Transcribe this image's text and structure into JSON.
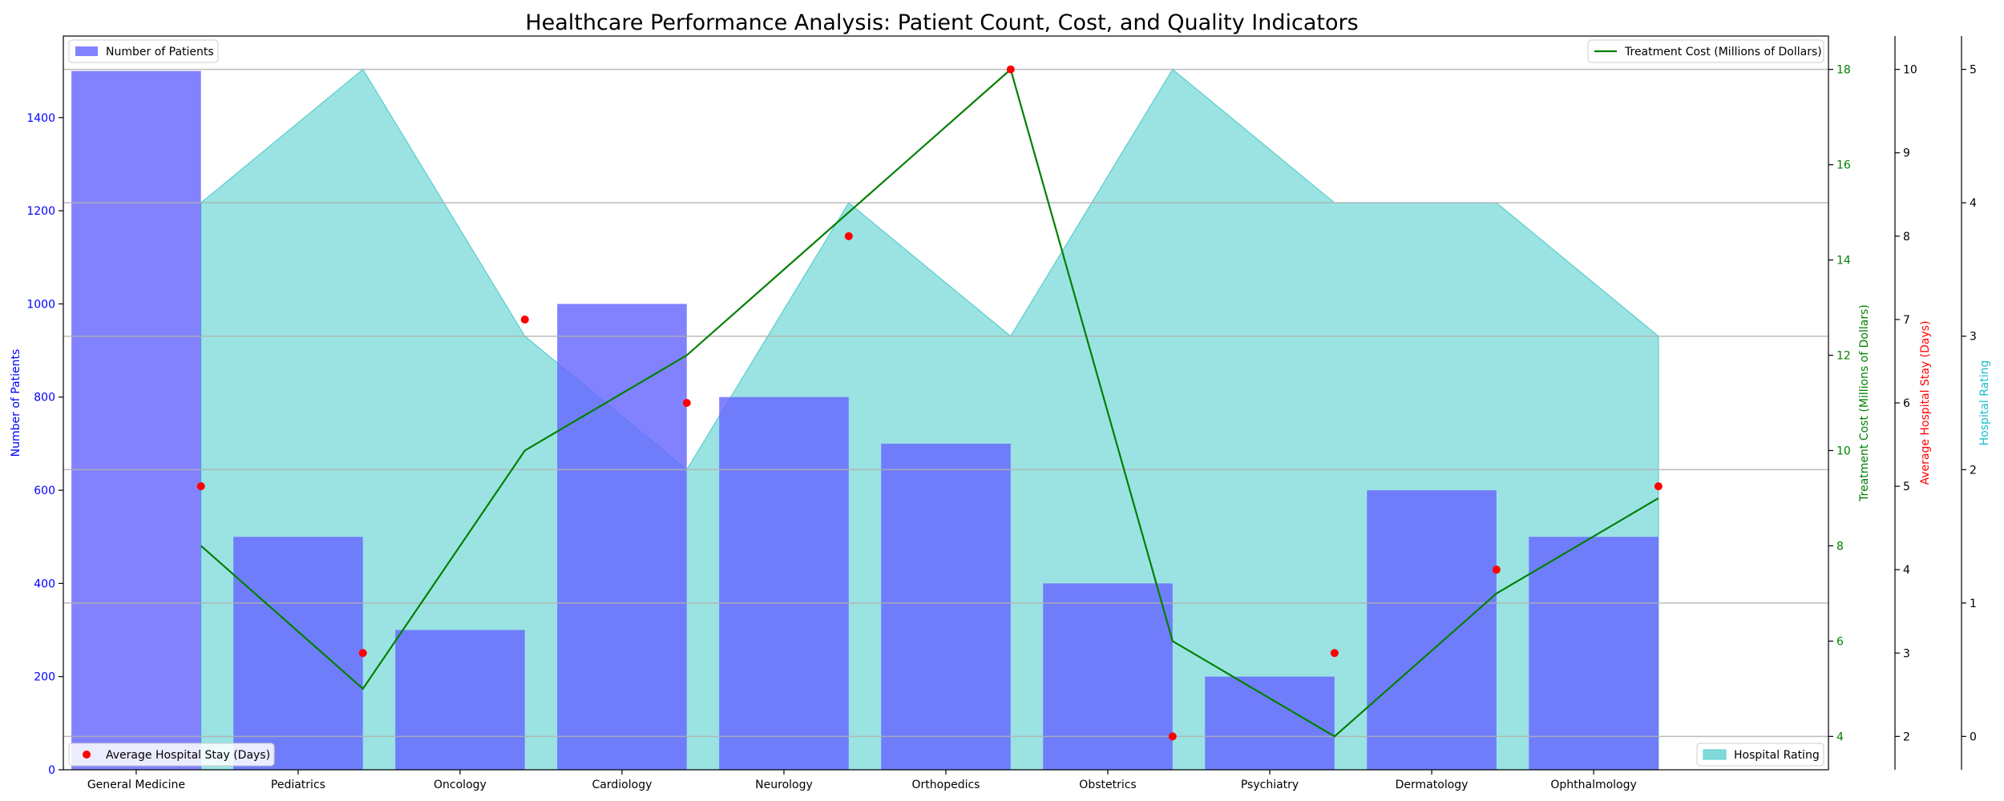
{
  "chart_data": {
    "type": "bar",
    "title": "Healthcare Performance Analysis: Patient Count, Cost, and Quality Indicators",
    "categories": [
      "General Medicine",
      "Pediatrics",
      "Oncology",
      "Cardiology",
      "Neurology",
      "Orthopedics",
      "Obstetrics",
      "Psychiatry",
      "Dermatology",
      "Ophthalmology"
    ],
    "series": [
      {
        "name": "Number of Patients",
        "type": "bar",
        "values": [
          1500,
          500,
          300,
          1000,
          800,
          700,
          400,
          200,
          600,
          500
        ],
        "color": "#6666ff"
      },
      {
        "name": "Treatment Cost (Millions of Dollars)",
        "type": "line",
        "values": [
          8,
          5,
          10,
          12,
          15,
          18,
          6,
          4,
          7,
          9
        ],
        "color": "#008000"
      },
      {
        "name": "Average Hospital Stay (Days)",
        "type": "scatter",
        "values": [
          5,
          3,
          7,
          6,
          8,
          10,
          2,
          3,
          4,
          5
        ],
        "color": "#ff0000"
      },
      {
        "name": "Hospital Rating",
        "type": "area",
        "values": [
          4,
          5,
          3,
          2,
          4,
          3,
          5,
          4,
          4,
          3
        ],
        "color": "#7fdbdb"
      }
    ],
    "axes": {
      "patients": {
        "label": "Number of Patients",
        "ylim": [
          0,
          1575
        ],
        "ticks": [
          0,
          200,
          400,
          600,
          800,
          1000,
          1200,
          1400
        ],
        "color": "#0000ff"
      },
      "cost": {
        "label": "Treatment Cost (Millions of Dollars)",
        "ylim": [
          3.3,
          18.7
        ],
        "ticks": [
          4,
          6,
          8,
          10,
          12,
          14,
          16,
          18
        ],
        "color": "#008000"
      },
      "stay": {
        "label": "Average Hospital Stay (Days)",
        "ylim": [
          1.6,
          10.4
        ],
        "ticks": [
          2,
          3,
          4,
          5,
          6,
          7,
          8,
          9,
          10
        ],
        "color": "#ff0000"
      },
      "rating": {
        "label": "Hospital Rating",
        "ylim": [
          -0.25,
          5.25
        ],
        "ticks": [
          0,
          1,
          2,
          3,
          4,
          5
        ],
        "color": "#17becf"
      }
    },
    "legend": {
      "patients": "top-left",
      "cost": "top-right",
      "stay": "bottom-left",
      "rating": "bottom-right"
    },
    "grid": true
  }
}
